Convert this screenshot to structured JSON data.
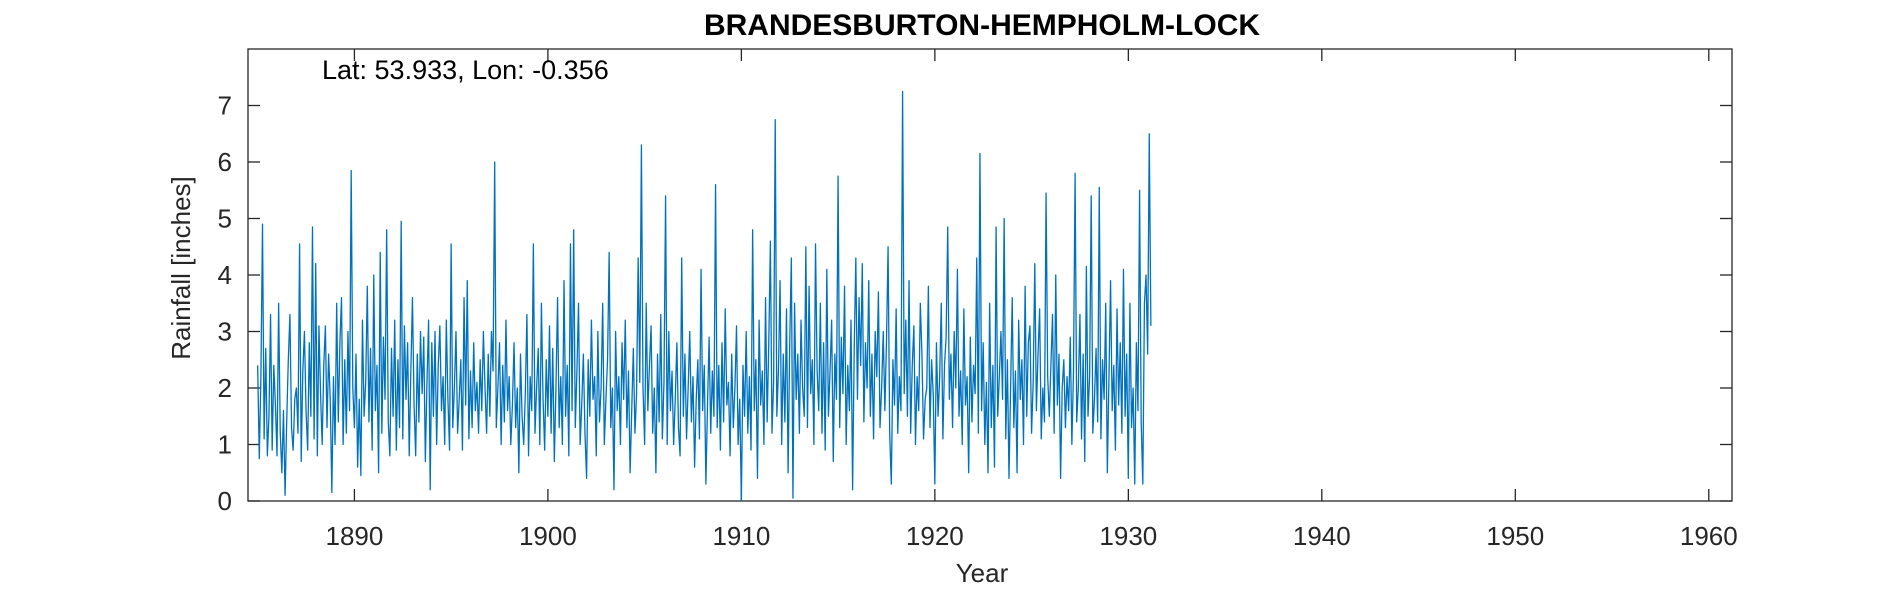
{
  "chart_data": {
    "type": "line",
    "title": "BRANDESBURTON-HEMPHOLM-LOCK",
    "annotation": "Lat: 53.933, Lon: -0.356",
    "xlabel": "Year",
    "ylabel": "Rainfall [inches]",
    "xlim": [
      1884.5,
      1961.2
    ],
    "ylim": [
      0,
      8
    ],
    "xticks": [
      1890,
      1900,
      1910,
      1920,
      1930,
      1940,
      1950,
      1960
    ],
    "yticks": [
      0,
      1,
      2,
      3,
      4,
      5,
      6,
      7
    ],
    "grid": false,
    "box": true,
    "series": [
      {
        "color": "#0072bd",
        "x_start": 1885.0,
        "x_step": 0.08333,
        "values": [
          2.4,
          0.75,
          2.2,
          4.9,
          1.1,
          2.7,
          0.8,
          1.5,
          3.3,
          0.9,
          2.4,
          1.7,
          0.8,
          3.5,
          1.2,
          0.5,
          1.6,
          0.1,
          1.4,
          2.5,
          3.3,
          1.3,
          0.9,
          1.8,
          2.0,
          1.2,
          4.55,
          0.7,
          2.3,
          3.0,
          1.6,
          0.9,
          2.8,
          1.5,
          4.85,
          1.1,
          4.2,
          0.8,
          3.1,
          1.9,
          1.0,
          2.4,
          3.1,
          1.3,
          2.6,
          1.8,
          0.15,
          2.2,
          1.0,
          3.5,
          1.4,
          2.8,
          3.6,
          1.0,
          2.5,
          1.2,
          3.0,
          1.6,
          5.85,
          2.0,
          1.3,
          2.6,
          0.6,
          1.8,
          0.45,
          3.2,
          1.5,
          2.1,
          3.8,
          1.4,
          2.7,
          0.9,
          4.0,
          1.6,
          2.4,
          0.5,
          4.4,
          1.2,
          2.9,
          1.8,
          4.8,
          1.4,
          0.8,
          2.7,
          1.5,
          3.2,
          0.9,
          2.5,
          1.3,
          4.95,
          1.1,
          3.1,
          1.8,
          2.8,
          0.8,
          2.3,
          3.6,
          1.7,
          0.8,
          2.6,
          1.4,
          3.0,
          1.9,
          2.9,
          0.7,
          2.1,
          3.2,
          0.2,
          2.8,
          1.5,
          3.0,
          1.0,
          2.4,
          3.1,
          1.6,
          2.2,
          1.0,
          3.2,
          1.8,
          0.9,
          4.55,
          1.3,
          2.0,
          3.0,
          1.2,
          1.8,
          2.5,
          0.9,
          3.6,
          1.7,
          3.9,
          1.1,
          2.3,
          1.3,
          2.8,
          1.6,
          2.1,
          1.2,
          2.5,
          1.6,
          3.0,
          2.0,
          1.2,
          2.6,
          1.5,
          3.0,
          2.3,
          6.0,
          1.3,
          2.0,
          2.8,
          1.0,
          2.4,
          1.4,
          3.2,
          1.6,
          2.2,
          1.0,
          1.7,
          2.8,
          1.3,
          2.0,
          0.5,
          2.6,
          1.5,
          1.0,
          1.9,
          3.3,
          0.8,
          2.2,
          1.6,
          4.55,
          1.2,
          2.0,
          2.7,
          1.0,
          3.5,
          1.8,
          0.9,
          2.5,
          1.5,
          3.1,
          1.2,
          2.7,
          0.7,
          2.0,
          3.6,
          1.3,
          2.2,
          1.0,
          3.9,
          1.5,
          2.4,
          0.8,
          4.55,
          1.6,
          4.8,
          1.3,
          2.3,
          3.5,
          1.0,
          1.7,
          2.6,
          1.2,
          0.4,
          2.5,
          1.5,
          3.2,
          1.8,
          2.2,
          0.8,
          3.0,
          1.4,
          2.0,
          3.5,
          1.0,
          1.8,
          2.5,
          4.4,
          1.3,
          2.0,
          0.2,
          3.0,
          1.6,
          2.2,
          1.0,
          2.8,
          1.8,
          3.2,
          1.3,
          2.3,
          0.5,
          1.6,
          2.7,
          1.2,
          1.9,
          4.3,
          2.1,
          6.3,
          2.0,
          1.0,
          3.5,
          1.6,
          2.4,
          3.1,
          1.2,
          2.0,
          0.5,
          2.6,
          1.4,
          3.3,
          1.1,
          2.1,
          5.4,
          1.0,
          3.0,
          1.6,
          2.3,
          1.0,
          1.8,
          2.8,
          1.3,
          0.8,
          4.3,
          1.5,
          2.6,
          1.1,
          2.0,
          3.0,
          1.4,
          2.2,
          0.6,
          1.8,
          2.5,
          1.1,
          4.1,
          1.6,
          2.4,
          0.3,
          1.7,
          2.9,
          1.2,
          2.3,
          1.5,
          5.6,
          1.3,
          2.4,
          0.9,
          2.8,
          1.4,
          3.4,
          1.7,
          2.1,
          0.8,
          2.6,
          1.3,
          2.0,
          3.1,
          1.0,
          1.8,
          0.0,
          2.4,
          1.5,
          3.0,
          1.2,
          2.2,
          0.9,
          4.8,
          1.6,
          2.5,
          0.4,
          3.2,
          1.7,
          2.3,
          1.0,
          3.6,
          1.4,
          2.8,
          4.6,
          1.2,
          2.1,
          6.75,
          1.5,
          2.3,
          3.9,
          1.0,
          2.6,
          1.4,
          3.4,
          0.5,
          2.8,
          4.3,
          0.05,
          3.5,
          1.8,
          2.6,
          1.2,
          3.2,
          2.0,
          1.5,
          4.5,
          1.3,
          3.8,
          1.9,
          2.5,
          1.0,
          4.55,
          2.3,
          1.6,
          3.5,
          1.2,
          2.8,
          0.9,
          4.1,
          1.5,
          2.3,
          3.2,
          0.7,
          2.6,
          1.8,
          5.75,
          1.3,
          2.9,
          1.9,
          3.8,
          1.0,
          2.4,
          1.6,
          3.2,
          0.2,
          2.7,
          4.3,
          1.8,
          3.6,
          2.4,
          4.2,
          1.4,
          2.8,
          2.0,
          3.9,
          1.5,
          2.6,
          1.1,
          3.0,
          2.2,
          3.7,
          1.3,
          2.0,
          3.0,
          1.6,
          2.8,
          4.5,
          1.2,
          0.3,
          2.5,
          1.7,
          3.4,
          1.2,
          2.2,
          1.6,
          7.25,
          1.9,
          3.2,
          1.5,
          3.9,
          1.2,
          2.4,
          3.1,
          1.0,
          2.2,
          1.6,
          3.5,
          2.6,
          1.1,
          1.8,
          2.0,
          3.8,
          1.3,
          2.5,
          1.9,
          0.3,
          2.8,
          1.5,
          2.2,
          3.5,
          1.1,
          2.4,
          2.9,
          4.85,
          1.8,
          2.6,
          1.3,
          3.0,
          2.0,
          4.1,
          1.5,
          2.3,
          1.0,
          3.4,
          1.7,
          2.2,
          0.5,
          2.9,
          1.4,
          2.4,
          1.9,
          4.3,
          1.2,
          6.15,
          1.6,
          2.8,
          1.0,
          2.1,
          0.5,
          3.5,
          1.3,
          2.4,
          0.6,
          4.85,
          1.5,
          2.2,
          3.0,
          1.8,
          5.0,
          1.1,
          2.5,
          0.4,
          2.0,
          3.6,
          1.3,
          2.3,
          0.5,
          3.2,
          1.8,
          2.5,
          1.0,
          3.8,
          1.5,
          2.8,
          3.1,
          1.2,
          2.1,
          4.2,
          1.6,
          2.6,
          3.4,
          1.1,
          2.0,
          1.4,
          5.45,
          2.2,
          1.5,
          2.4,
          3.3,
          1.2,
          4.0,
          1.7,
          2.6,
          0.4,
          2.0,
          2.5,
          1.3,
          2.2,
          1.6,
          2.9,
          1.0,
          2.3,
          5.8,
          1.4,
          2.0,
          3.3,
          1.1,
          2.6,
          0.7,
          4.15,
          1.5,
          2.2,
          5.4,
          1.2,
          1.8,
          2.7,
          1.4,
          5.55,
          1.1,
          2.5,
          1.8,
          3.5,
          0.5,
          2.2,
          3.9,
          1.6,
          2.4,
          0.9,
          3.4,
          1.7,
          2.8,
          1.2,
          4.1,
          1.5,
          2.6,
          0.4,
          3.5,
          1.3,
          2.0,
          0.3,
          2.8,
          1.6,
          5.5,
          1.4,
          0.3,
          3.5,
          4.0,
          2.6,
          6.5,
          3.1
        ]
      }
    ]
  }
}
